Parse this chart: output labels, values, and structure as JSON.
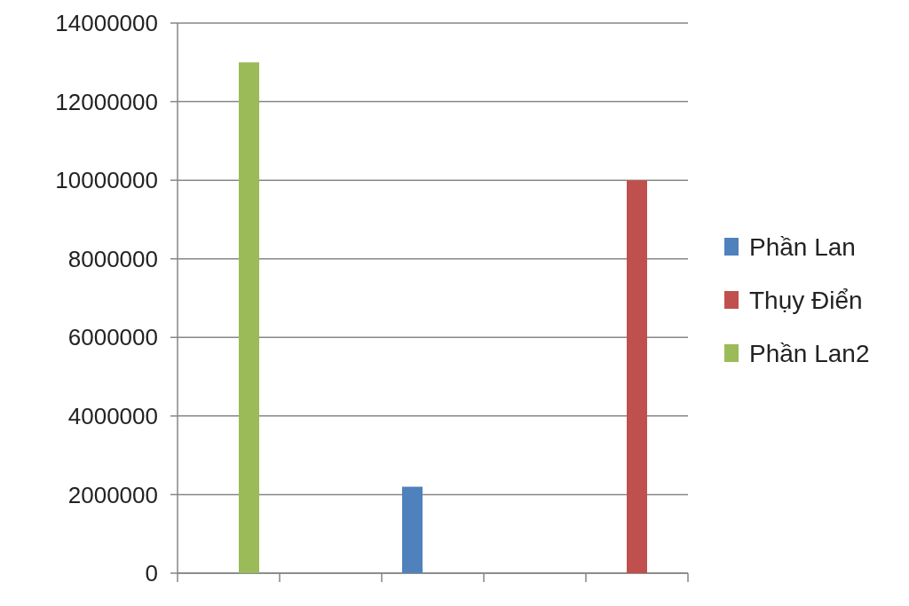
{
  "chart_data": {
    "type": "bar",
    "categories": [
      null,
      null,
      null,
      null,
      null
    ],
    "series": [
      {
        "name": "Phần Lan",
        "color": "#4f81bd",
        "values": [
          null,
          null,
          2200000,
          null,
          null
        ]
      },
      {
        "name": "Thụy Điển",
        "color": "#c0504d",
        "values": [
          null,
          null,
          null,
          null,
          10000000
        ]
      },
      {
        "name": "Phần Lan2",
        "color": "#9bbb59",
        "values": [
          13000000,
          null,
          null,
          null,
          null
        ]
      }
    ],
    "ylim": [
      0,
      14000000
    ],
    "yticks": [
      0,
      2000000,
      4000000,
      6000000,
      8000000,
      10000000,
      12000000,
      14000000
    ],
    "grid": "y",
    "legend": "right"
  }
}
